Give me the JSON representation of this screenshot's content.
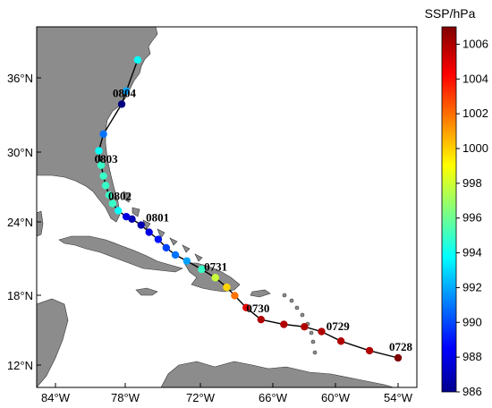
{
  "colorbar": {
    "title": "SSP/hPa",
    "ticks": [
      "1006",
      "1004",
      "1002",
      "1000",
      "998",
      "996",
      "994",
      "992",
      "990",
      "988",
      "986"
    ],
    "min": 986,
    "max": 1007
  },
  "axes": {
    "lat_labels": [
      "36°N",
      "30°N",
      "24°N",
      "18°N",
      "12°N"
    ],
    "lon_labels": [
      "84°W",
      "78°W",
      "72°W",
      "66°W",
      "60°W",
      "54°W"
    ]
  },
  "track": {
    "points": [
      {
        "lon": -54.0,
        "lat": 12.6,
        "p": 1007
      },
      {
        "lon": -56.5,
        "lat": 13.2,
        "p": 1006
      },
      {
        "lon": -59.0,
        "lat": 14.0,
        "p": 1006
      },
      {
        "lon": -60.7,
        "lat": 14.8,
        "p": 1006
      },
      {
        "lon": -62.2,
        "lat": 15.2,
        "p": 1006
      },
      {
        "lon": -64.0,
        "lat": 15.4,
        "p": 1006
      },
      {
        "lon": -66.0,
        "lat": 15.8,
        "p": 1006
      },
      {
        "lon": -67.3,
        "lat": 16.8,
        "p": 1005
      },
      {
        "lon": -68.3,
        "lat": 17.8,
        "p": 1002
      },
      {
        "lon": -69.0,
        "lat": 18.5,
        "p": 1000
      },
      {
        "lon": -70.0,
        "lat": 19.3,
        "p": 998
      },
      {
        "lon": -71.2,
        "lat": 20.0,
        "p": 995
      },
      {
        "lon": -72.5,
        "lat": 20.7,
        "p": 992
      },
      {
        "lon": -73.5,
        "lat": 21.2,
        "p": 991
      },
      {
        "lon": -74.3,
        "lat": 21.8,
        "p": 990
      },
      {
        "lon": -75.0,
        "lat": 22.5,
        "p": 989
      },
      {
        "lon": -75.8,
        "lat": 23.1,
        "p": 988
      },
      {
        "lon": -76.5,
        "lat": 23.7,
        "p": 987
      },
      {
        "lon": -77.3,
        "lat": 24.2,
        "p": 987
      },
      {
        "lon": -77.8,
        "lat": 24.4,
        "p": 988
      },
      {
        "lon": -78.5,
        "lat": 24.9,
        "p": 994
      },
      {
        "lon": -79.0,
        "lat": 25.5,
        "p": 995
      },
      {
        "lon": -79.3,
        "lat": 26.2,
        "p": 995
      },
      {
        "lon": -79.6,
        "lat": 27.0,
        "p": 995
      },
      {
        "lon": -79.8,
        "lat": 27.8,
        "p": 995
      },
      {
        "lon": -80.0,
        "lat": 28.7,
        "p": 995
      },
      {
        "lon": -80.2,
        "lat": 29.9,
        "p": 994
      },
      {
        "lon": -79.8,
        "lat": 31.3,
        "p": 991
      },
      {
        "lon": -78.2,
        "lat": 33.8,
        "p": 986
      },
      {
        "lon": -77.8,
        "lat": 34.9,
        "p": 992
      },
      {
        "lon": -76.8,
        "lat": 37.5,
        "p": 994
      }
    ],
    "labels": [
      {
        "text": "0728",
        "lon": -54.0,
        "lat": 12.6
      },
      {
        "text": "0729",
        "lon": -59.5,
        "lat": 14.3
      },
      {
        "text": "0730",
        "lon": -66.5,
        "lat": 15.8
      },
      {
        "text": "0731",
        "lon": -70.2,
        "lat": 19.3
      },
      {
        "text": "0801",
        "lon": -75.3,
        "lat": 23.4
      },
      {
        "text": "0802",
        "lon": -78.6,
        "lat": 25.2
      },
      {
        "text": "0803",
        "lon": -79.8,
        "lat": 28.3
      },
      {
        "text": "0804",
        "lon": -78.2,
        "lat": 33.8
      }
    ]
  }
}
